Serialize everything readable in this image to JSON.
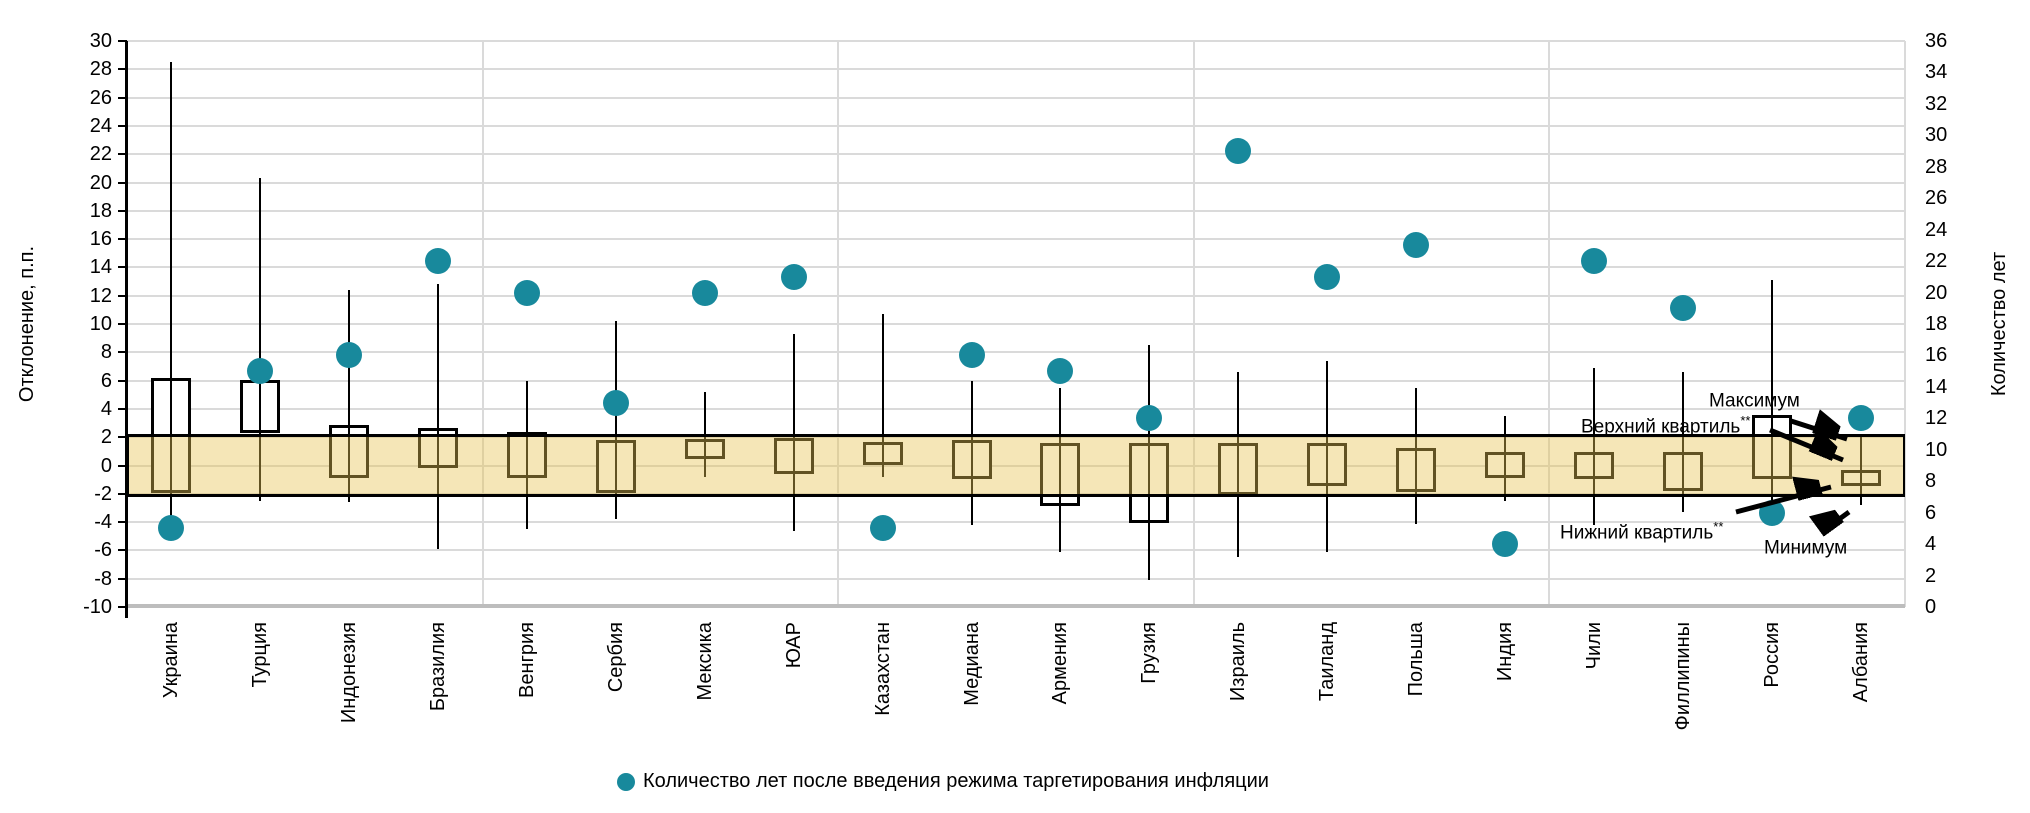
{
  "chart_data": {
    "type": "box",
    "categories": [
      "Украина",
      "Турция",
      "Индонезия",
      "Бразилия",
      "Венгрия",
      "Сербия",
      "Мексика",
      "ЮАР",
      "Казахстан",
      "Медиана",
      "Армения",
      "Грузия",
      "Израиль",
      "Таиланд",
      "Польша",
      "Индия",
      "Чили",
      "Филлипины",
      "Россия",
      "Албания"
    ],
    "boxes": [
      {
        "max": 28.5,
        "upper_quartile": 6.1,
        "lower_quartile": -1.9,
        "min": -3.6
      },
      {
        "max": 20.3,
        "upper_quartile": 6.0,
        "lower_quartile": 2.4,
        "min": -2.5
      },
      {
        "max": 12.4,
        "upper_quartile": 2.8,
        "lower_quartile": -0.8,
        "min": -2.6
      },
      {
        "max": 12.8,
        "upper_quartile": 2.6,
        "lower_quartile": -0.1,
        "min": -5.9
      },
      {
        "max": 6.0,
        "upper_quartile": 2.3,
        "lower_quartile": -0.8,
        "min": -4.5
      },
      {
        "max": 10.2,
        "upper_quartile": 1.7,
        "lower_quartile": -1.9,
        "min": -3.8
      },
      {
        "max": 5.2,
        "upper_quartile": 1.8,
        "lower_quartile": 0.5,
        "min": -0.8
      },
      {
        "max": 9.3,
        "upper_quartile": 1.9,
        "lower_quartile": -0.5,
        "min": -4.6
      },
      {
        "max": 10.7,
        "upper_quartile": 1.6,
        "lower_quartile": 0.1,
        "min": -0.8
      },
      {
        "max": 6.0,
        "upper_quartile": 1.7,
        "lower_quartile": -0.9,
        "min": -4.2
      },
      {
        "max": 5.5,
        "upper_quartile": 1.5,
        "lower_quartile": -2.8,
        "min": -6.1
      },
      {
        "max": 8.5,
        "upper_quartile": 1.5,
        "lower_quartile": -4.0,
        "min": -8.1
      },
      {
        "max": 6.6,
        "upper_quartile": 1.5,
        "lower_quartile": -2.0,
        "min": -6.5
      },
      {
        "max": 7.4,
        "upper_quartile": 1.5,
        "lower_quartile": -1.4,
        "min": -6.1
      },
      {
        "max": 5.5,
        "upper_quartile": 1.2,
        "lower_quartile": -1.8,
        "min": -4.1
      },
      {
        "max": 3.5,
        "upper_quartile": 0.9,
        "lower_quartile": -0.8,
        "min": -2.5
      },
      {
        "max": 6.9,
        "upper_quartile": 0.9,
        "lower_quartile": -0.9,
        "min": -4.2
      },
      {
        "max": 6.6,
        "upper_quartile": 0.9,
        "lower_quartile": -1.7,
        "min": -3.3
      },
      {
        "max": 13.1,
        "upper_quartile": 3.5,
        "lower_quartile": -0.9,
        "min": -2.6
      },
      {
        "max": 2.0,
        "upper_quartile": -0.4,
        "lower_quartile": -1.4,
        "min": -2.8
      }
    ],
    "series": [
      {
        "name": "Количество лет после введения режима таргетирования инфляции",
        "type": "scatter",
        "axis": "right",
        "values": [
          5,
          15,
          16,
          22,
          20,
          13,
          20,
          21,
          5,
          16,
          15,
          12,
          29,
          21,
          23,
          4,
          22,
          19,
          6,
          12
        ]
      }
    ],
    "left_axis": {
      "title": "Отклонение, п.п.",
      "min": -10,
      "max": 30,
      "tick_step": 2,
      "ticks": [
        30,
        28,
        26,
        24,
        22,
        20,
        18,
        16,
        14,
        12,
        10,
        8,
        6,
        4,
        2,
        0,
        -2,
        -4,
        -6,
        -8,
        -10
      ]
    },
    "right_axis": {
      "title": "Количество лет",
      "min": 0,
      "max": 36,
      "tick_step": 2,
      "ticks": [
        36,
        34,
        32,
        30,
        28,
        26,
        24,
        22,
        20,
        18,
        16,
        14,
        12,
        10,
        8,
        6,
        4,
        2,
        0
      ]
    },
    "target_band": {
      "from": -2,
      "to": 2
    },
    "grid": true,
    "legend_position": "bottom"
  },
  "legend": {
    "label": "Количество лет после введения режима таргетирования инфляции"
  },
  "annotations": {
    "maximum": {
      "label": "Максимум",
      "sup": ""
    },
    "upper_quartile": {
      "label": "Верхний квартиль",
      "sup": "**"
    },
    "lower_quartile": {
      "label": "Нижний квартиль",
      "sup": "**"
    },
    "minimum": {
      "label": "Минимум",
      "sup": ""
    }
  },
  "colors": {
    "dot": "#18899C",
    "band_fill": "#E7C454",
    "box_border": "#000000",
    "grid": "#DADADA",
    "axis": "#000000",
    "bottom_axis": "#BDBDBD"
  }
}
